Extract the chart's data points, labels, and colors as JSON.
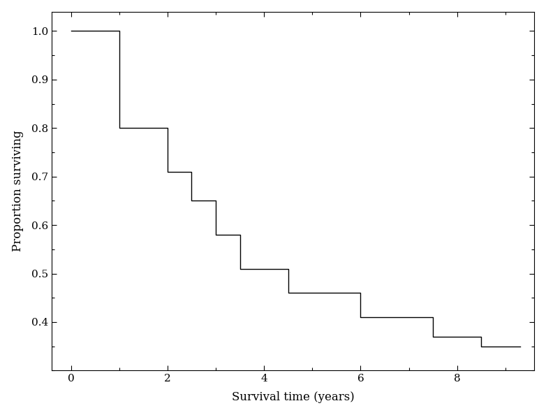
{
  "step_x": [
    0,
    1.0,
    1.0,
    2.0,
    2.0,
    2.5,
    2.5,
    3.0,
    3.0,
    3.5,
    3.5,
    4.5,
    4.5,
    5.0,
    5.0,
    6.0,
    6.0,
    6.5,
    6.5,
    7.5,
    7.5,
    8.5,
    8.5,
    9.3
  ],
  "step_y": [
    1.0,
    1.0,
    0.8,
    0.8,
    0.71,
    0.71,
    0.65,
    0.65,
    0.58,
    0.58,
    0.51,
    0.51,
    0.46,
    0.46,
    0.46,
    0.46,
    0.41,
    0.41,
    0.41,
    0.41,
    0.37,
    0.37,
    0.35,
    0.35
  ],
  "xlim": [
    -0.4,
    9.6
  ],
  "ylim": [
    0.3,
    1.04
  ],
  "xticks": [
    0,
    2,
    4,
    6,
    8
  ],
  "yticks": [
    0.4,
    0.5,
    0.6,
    0.7,
    0.8,
    0.9,
    1.0
  ],
  "xlabel": "Survival time (years)",
  "ylabel": "Proportion surviving",
  "line_color": "#000000",
  "line_width": 1.0,
  "bg_color": "#ffffff",
  "label_fontsize": 12,
  "tick_fontsize": 11
}
